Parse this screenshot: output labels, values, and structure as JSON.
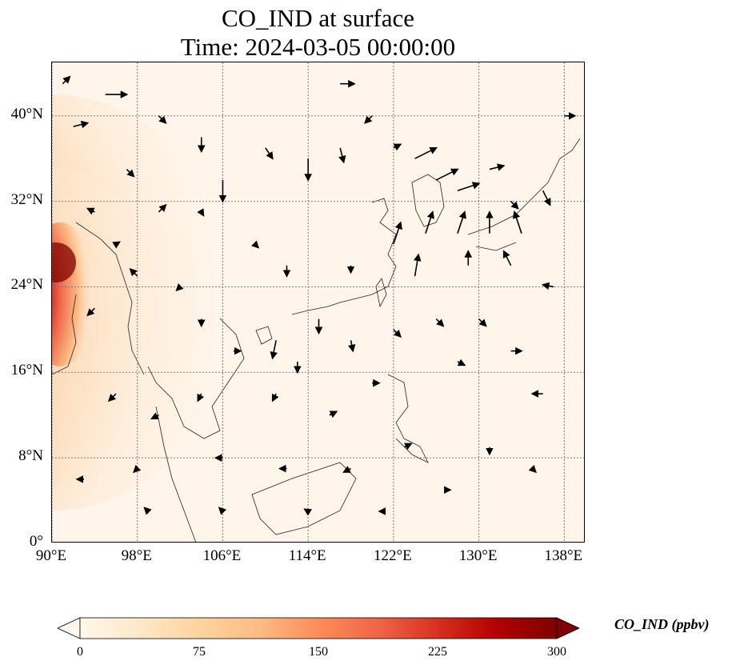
{
  "title": {
    "line1": "CO_IND at surface",
    "line2": "Time: 2024-03-05 00:00:00"
  },
  "map": {
    "projection": "PlateCarree",
    "extent": {
      "lon_min": 90,
      "lon_max": 140,
      "lat_min": 0,
      "lat_max": 45
    },
    "gridlines": "dotted",
    "lat_ticks": [
      "0°",
      "8°N",
      "16°N",
      "24°N",
      "32°N",
      "40°N"
    ],
    "lat_tick_values": [
      0,
      8,
      16,
      24,
      32,
      40
    ],
    "lon_ticks": [
      "90°E",
      "98°E",
      "106°E",
      "114°E",
      "122°E",
      "130°E",
      "138°E"
    ],
    "lon_tick_values": [
      90,
      98,
      106,
      114,
      122,
      130,
      138
    ],
    "field_peak_region": "Myanmar / Bay of Bengal coast (~90–93°E, 18–27°N)",
    "background_color": "#fff5ea"
  },
  "colorbar": {
    "label": "CO_IND (ppbv)",
    "ticks": [
      "0",
      "75",
      "150",
      "225",
      "300"
    ],
    "tick_values": [
      0,
      75,
      150,
      225,
      300
    ],
    "min": 0,
    "max": 300,
    "extend": "both",
    "colormap": "OrRd",
    "colors": [
      "#fff7ec",
      "#fee8c8",
      "#fdd49e",
      "#fdbb84",
      "#fc8d59",
      "#ef6548",
      "#d7301f",
      "#b30000",
      "#7f0000"
    ]
  },
  "wind_vectors": [
    {
      "lon": 91,
      "lat": 43,
      "u": 1,
      "v": 1
    },
    {
      "lon": 92,
      "lat": 39,
      "u": 2,
      "v": 0.5
    },
    {
      "lon": 95,
      "lat": 42,
      "u": 3,
      "v": 0
    },
    {
      "lon": 97,
      "lat": 35,
      "u": 1,
      "v": -1
    },
    {
      "lon": 100,
      "lat": 40,
      "u": 1,
      "v": -1
    },
    {
      "lon": 104,
      "lat": 38,
      "u": 0,
      "v": -2
    },
    {
      "lon": 106,
      "lat": 34,
      "u": 0,
      "v": -3
    },
    {
      "lon": 110,
      "lat": 37,
      "u": 1,
      "v": -1.5
    },
    {
      "lon": 114,
      "lat": 36,
      "u": 0,
      "v": -3
    },
    {
      "lon": 117,
      "lat": 43,
      "u": 2,
      "v": 0
    },
    {
      "lon": 117,
      "lat": 37,
      "u": 0.5,
      "v": -2
    },
    {
      "lon": 120,
      "lat": 40,
      "u": -1,
      "v": -1
    },
    {
      "lon": 122,
      "lat": 37,
      "u": 1,
      "v": 0.5
    },
    {
      "lon": 124,
      "lat": 36,
      "u": 3,
      "v": 1.5
    },
    {
      "lon": 126,
      "lat": 34,
      "u": 3,
      "v": 1.5
    },
    {
      "lon": 128,
      "lat": 33,
      "u": 3,
      "v": 1
    },
    {
      "lon": 131,
      "lat": 35,
      "u": 2,
      "v": 0.5
    },
    {
      "lon": 133,
      "lat": 32,
      "u": 1,
      "v": -1
    },
    {
      "lon": 136,
      "lat": 33,
      "u": 1,
      "v": -2
    },
    {
      "lon": 138,
      "lat": 40,
      "u": 1.5,
      "v": 0
    },
    {
      "lon": 122,
      "lat": 28,
      "u": 1,
      "v": 3
    },
    {
      "lon": 125,
      "lat": 29,
      "u": 1,
      "v": 3
    },
    {
      "lon": 128,
      "lat": 29,
      "u": 1,
      "v": 3
    },
    {
      "lon": 131,
      "lat": 29,
      "u": 0,
      "v": 3
    },
    {
      "lon": 134,
      "lat": 29,
      "u": -1,
      "v": 3
    },
    {
      "lon": 124,
      "lat": 25,
      "u": 0.5,
      "v": 3
    },
    {
      "lon": 129,
      "lat": 26,
      "u": 0,
      "v": 2
    },
    {
      "lon": 133,
      "lat": 26,
      "u": -1,
      "v": 2
    },
    {
      "lon": 137,
      "lat": 24,
      "u": -1.5,
      "v": 0.3
    },
    {
      "lon": 118,
      "lat": 26,
      "u": 0,
      "v": -1
    },
    {
      "lon": 112,
      "lat": 26,
      "u": 0,
      "v": -1.5
    },
    {
      "lon": 109,
      "lat": 28,
      "u": 0.5,
      "v": -0.5
    },
    {
      "lon": 115,
      "lat": 21,
      "u": 0,
      "v": -2
    },
    {
      "lon": 111,
      "lat": 19,
      "u": -0.5,
      "v": -2.5
    },
    {
      "lon": 113,
      "lat": 17,
      "u": 0,
      "v": -1.5
    },
    {
      "lon": 118,
      "lat": 19,
      "u": 0.3,
      "v": -1.5
    },
    {
      "lon": 122,
      "lat": 20,
      "u": 1,
      "v": -1
    },
    {
      "lon": 126,
      "lat": 21,
      "u": 1,
      "v": -1
    },
    {
      "lon": 130,
      "lat": 21,
      "u": 1,
      "v": -1
    },
    {
      "lon": 128,
      "lat": 17,
      "u": 1,
      "v": -0.5
    },
    {
      "lon": 133,
      "lat": 18,
      "u": 1.5,
      "v": 0
    },
    {
      "lon": 136,
      "lat": 14,
      "u": -1.5,
      "v": 0
    },
    {
      "lon": 120,
      "lat": 15,
      "u": 1,
      "v": 0
    },
    {
      "lon": 116,
      "lat": 12,
      "u": 1,
      "v": 0.5
    },
    {
      "lon": 111,
      "lat": 14,
      "u": -0.5,
      "v": -1
    },
    {
      "lon": 104,
      "lat": 14,
      "u": -0.5,
      "v": -1
    },
    {
      "lon": 100,
      "lat": 12,
      "u": -1,
      "v": -0.5
    },
    {
      "lon": 96,
      "lat": 14,
      "u": -1,
      "v": -1
    },
    {
      "lon": 94,
      "lat": 22,
      "u": -1,
      "v": -1
    },
    {
      "lon": 98,
      "lat": 25,
      "u": -1,
      "v": 1
    },
    {
      "lon": 102,
      "lat": 24,
      "u": -0.5,
      "v": -0.5
    },
    {
      "lon": 104,
      "lat": 21,
      "u": 0,
      "v": -1
    },
    {
      "lon": 107,
      "lat": 18,
      "u": 1,
      "v": 0
    },
    {
      "lon": 123,
      "lat": 9,
      "u": 1,
      "v": 0.5
    },
    {
      "lon": 118,
      "lat": 7,
      "u": -1,
      "v": -0.5
    },
    {
      "lon": 112,
      "lat": 7,
      "u": -1,
      "v": 0
    },
    {
      "lon": 106,
      "lat": 8,
      "u": -1,
      "v": 0
    },
    {
      "lon": 98,
      "lat": 7,
      "u": -0.5,
      "v": -0.5
    },
    {
      "lon": 93,
      "lat": 6,
      "u": -1,
      "v": 0
    },
    {
      "lon": 131,
      "lat": 9,
      "u": 0,
      "v": -1
    },
    {
      "lon": 135,
      "lat": 7,
      "u": 0.5,
      "v": -0.5
    },
    {
      "lon": 127,
      "lat": 5,
      "u": 0.5,
      "v": 0
    },
    {
      "lon": 121,
      "lat": 3,
      "u": -0.5,
      "v": 0
    },
    {
      "lon": 114,
      "lat": 3,
      "u": -0.5,
      "v": 0.3
    },
    {
      "lon": 106,
      "lat": 3,
      "u": -0.5,
      "v": 0.5
    },
    {
      "lon": 99,
      "lat": 3,
      "u": -0.5,
      "v": 0.5
    },
    {
      "lon": 94,
      "lat": 31,
      "u": -1,
      "v": 0.5
    },
    {
      "lon": 96,
      "lat": 28,
      "u": 0.5,
      "v": 0.3
    },
    {
      "lon": 100,
      "lat": 31,
      "u": 1,
      "v": 1
    },
    {
      "lon": 104,
      "lat": 31,
      "u": 0.3,
      "v": -0.5
    }
  ]
}
